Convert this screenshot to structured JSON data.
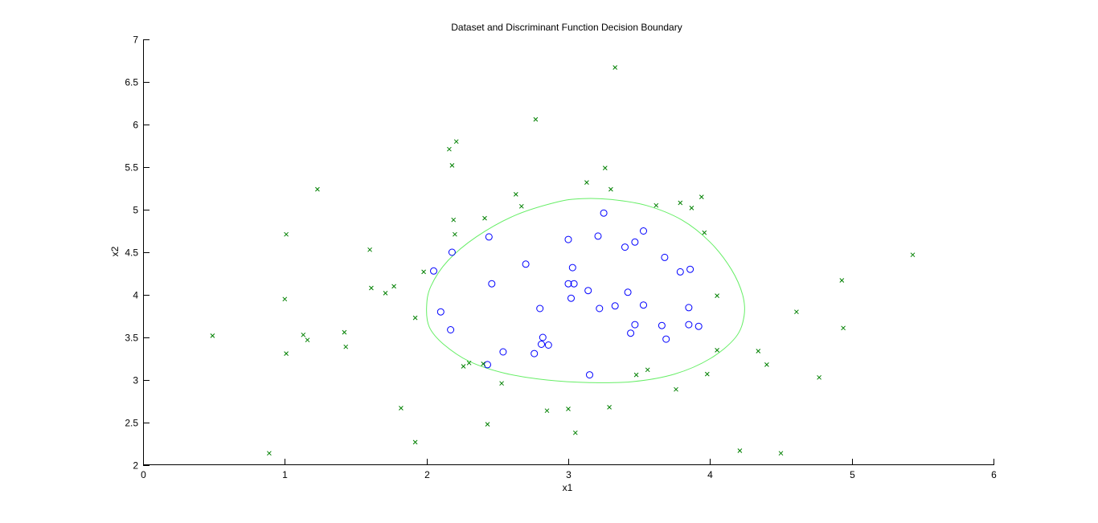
{
  "chart_data": {
    "type": "scatter",
    "title": "Dataset and Discriminant Function Decision Boundary",
    "xlabel": "x1",
    "ylabel": "x2",
    "xlim": [
      0,
      6
    ],
    "ylim": [
      2,
      7
    ],
    "xticks": [
      0,
      1,
      2,
      3,
      4,
      5,
      6
    ],
    "yticks": [
      2,
      2.5,
      3,
      3.5,
      4,
      4.5,
      5,
      5.5,
      6,
      6.5,
      7
    ],
    "grid": false,
    "legend": "none",
    "colors": {
      "cross": "#008000",
      "circle": "#0000ff",
      "boundary": "#66ee66"
    },
    "series": [
      {
        "marker": "circle",
        "color": "#0000ff",
        "points": [
          [
            2.44,
            4.68
          ],
          [
            2.18,
            4.5
          ],
          [
            2.05,
            4.28
          ],
          [
            2.46,
            4.13
          ],
          [
            2.1,
            3.8
          ],
          [
            2.17,
            3.59
          ],
          [
            2.54,
            3.33
          ],
          [
            2.43,
            3.18
          ],
          [
            2.7,
            4.36
          ],
          [
            2.8,
            3.84
          ],
          [
            2.82,
            3.5
          ],
          [
            2.81,
            3.42
          ],
          [
            2.86,
            3.41
          ],
          [
            2.76,
            3.31
          ],
          [
            3.0,
            4.65
          ],
          [
            3.03,
            4.32
          ],
          [
            3.0,
            4.13
          ],
          [
            3.04,
            4.13
          ],
          [
            3.02,
            3.96
          ],
          [
            3.14,
            4.05
          ],
          [
            3.15,
            3.06
          ],
          [
            3.22,
            3.84
          ],
          [
            3.21,
            4.69
          ],
          [
            3.25,
            4.96
          ],
          [
            3.33,
            3.87
          ],
          [
            3.4,
            4.56
          ],
          [
            3.42,
            4.03
          ],
          [
            3.47,
            4.62
          ],
          [
            3.53,
            4.75
          ],
          [
            3.53,
            3.88
          ],
          [
            3.47,
            3.65
          ],
          [
            3.44,
            3.55
          ],
          [
            3.68,
            4.44
          ],
          [
            3.66,
            3.64
          ],
          [
            3.69,
            3.48
          ],
          [
            3.79,
            4.27
          ],
          [
            3.86,
            4.3
          ],
          [
            3.85,
            3.85
          ],
          [
            3.85,
            3.65
          ],
          [
            3.92,
            3.63
          ]
        ]
      },
      {
        "marker": "cross",
        "color": "#008000",
        "points": [
          [
            0.49,
            3.52
          ],
          [
            0.89,
            2.14
          ],
          [
            1.01,
            4.71
          ],
          [
            1.0,
            3.95
          ],
          [
            1.01,
            3.31
          ],
          [
            1.13,
            3.53
          ],
          [
            1.16,
            3.47
          ],
          [
            1.23,
            5.24
          ],
          [
            1.42,
            3.56
          ],
          [
            1.43,
            3.39
          ],
          [
            1.6,
            4.53
          ],
          [
            1.61,
            4.08
          ],
          [
            1.71,
            4.02
          ],
          [
            1.77,
            4.1
          ],
          [
            1.82,
            2.67
          ],
          [
            1.92,
            3.73
          ],
          [
            1.92,
            2.27
          ],
          [
            1.98,
            4.27
          ],
          [
            2.16,
            5.71
          ],
          [
            2.18,
            5.52
          ],
          [
            2.19,
            4.88
          ],
          [
            2.2,
            4.71
          ],
          [
            2.21,
            5.8
          ],
          [
            2.26,
            3.16
          ],
          [
            2.3,
            3.2
          ],
          [
            2.4,
            3.19
          ],
          [
            2.41,
            4.9
          ],
          [
            2.43,
            2.48
          ],
          [
            2.53,
            2.96
          ],
          [
            2.63,
            5.18
          ],
          [
            2.67,
            5.04
          ],
          [
            2.77,
            6.06
          ],
          [
            2.85,
            2.64
          ],
          [
            3.0,
            2.66
          ],
          [
            3.05,
            2.38
          ],
          [
            3.13,
            5.32
          ],
          [
            3.26,
            5.49
          ],
          [
            3.29,
            2.68
          ],
          [
            3.3,
            5.24
          ],
          [
            3.33,
            6.67
          ],
          [
            3.48,
            3.06
          ],
          [
            3.56,
            3.12
          ],
          [
            3.62,
            5.05
          ],
          [
            3.76,
            2.89
          ],
          [
            3.79,
            5.08
          ],
          [
            3.87,
            5.02
          ],
          [
            3.94,
            5.15
          ],
          [
            3.96,
            4.73
          ],
          [
            3.98,
            3.07
          ],
          [
            4.05,
            3.99
          ],
          [
            4.05,
            3.35
          ],
          [
            4.21,
            2.17
          ],
          [
            4.34,
            3.34
          ],
          [
            4.4,
            3.18
          ],
          [
            4.5,
            2.14
          ],
          [
            4.61,
            3.8
          ],
          [
            4.77,
            3.03
          ],
          [
            4.93,
            4.17
          ],
          [
            4.94,
            3.61
          ],
          [
            5.43,
            4.47
          ]
        ]
      }
    ],
    "boundary": {
      "shape": "closed-curve",
      "color": "#66ee66",
      "points": [
        [
          2.0,
          3.85
        ],
        [
          2.03,
          4.1
        ],
        [
          2.15,
          4.4
        ],
        [
          2.35,
          4.68
        ],
        [
          2.62,
          4.93
        ],
        [
          2.92,
          5.09
        ],
        [
          3.1,
          5.13
        ],
        [
          3.3,
          5.12
        ],
        [
          3.55,
          5.05
        ],
        [
          3.8,
          4.88
        ],
        [
          4.0,
          4.62
        ],
        [
          4.15,
          4.3
        ],
        [
          4.23,
          4.0
        ],
        [
          4.24,
          3.75
        ],
        [
          4.18,
          3.5
        ],
        [
          4.0,
          3.25
        ],
        [
          3.75,
          3.07
        ],
        [
          3.45,
          2.98
        ],
        [
          3.15,
          2.97
        ],
        [
          2.85,
          3.0
        ],
        [
          2.55,
          3.08
        ],
        [
          2.3,
          3.22
        ],
        [
          2.12,
          3.42
        ],
        [
          2.02,
          3.62
        ],
        [
          2.0,
          3.85
        ]
      ]
    }
  }
}
